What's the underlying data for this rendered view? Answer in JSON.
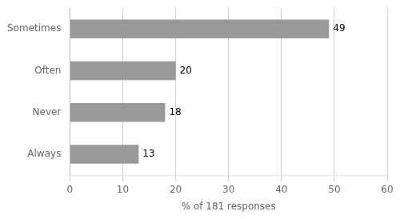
{
  "chart_data": {
    "type": "bar",
    "orientation": "horizontal",
    "categories": [
      "Always",
      "Never",
      "Often",
      "Sometimes"
    ],
    "values": [
      13,
      18,
      20,
      49
    ],
    "color": "#999999",
    "xlabel": "% of 181 responses",
    "xlim": [
      0,
      60
    ],
    "xticks": [
      0,
      10,
      20,
      30,
      40,
      50,
      60
    ],
    "grid": true,
    "data_labels": true
  }
}
